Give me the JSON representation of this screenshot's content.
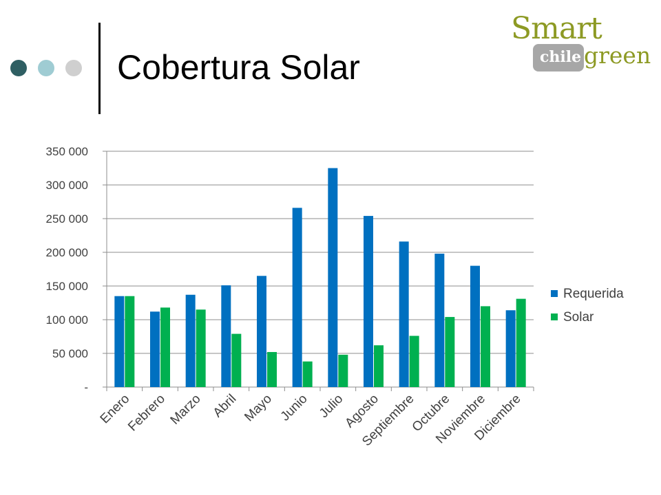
{
  "slide": {
    "title": "Cobertura Solar",
    "dots": [
      "#2f5f63",
      "#9fccd3",
      "#cfcfcf"
    ]
  },
  "logo": {
    "smart": "Smart",
    "chile": "chile",
    "green": "green",
    "color": "#8d9a24"
  },
  "chart_data": {
    "type": "bar",
    "title": "",
    "xlabel": "",
    "ylabel": "",
    "categories": [
      "Enero",
      "Febrero",
      "Marzo",
      "Abril",
      "Mayo",
      "Junio",
      "Julio",
      "Agosto",
      "Septiembre",
      "Octubre",
      "Noviembre",
      "Diciembre"
    ],
    "series": [
      {
        "name": "Requerida",
        "color": "#0070c0",
        "values": [
          135000,
          112000,
          137000,
          151000,
          165000,
          266000,
          325000,
          254000,
          216000,
          198000,
          180000,
          114000
        ]
      },
      {
        "name": "Solar",
        "color": "#00b050",
        "values": [
          135000,
          118000,
          115000,
          79000,
          52000,
          38000,
          48000,
          62000,
          76000,
          104000,
          120000,
          131000
        ]
      }
    ],
    "ylim": [
      0,
      350000
    ],
    "yticks": [
      0,
      50000,
      100000,
      150000,
      200000,
      250000,
      300000,
      350000
    ],
    "ytick_labels": [
      "-",
      "50 000",
      "100 000",
      "150 000",
      "200 000",
      "250 000",
      "300 000",
      "350 000"
    ],
    "grid": true,
    "legend": "right"
  }
}
